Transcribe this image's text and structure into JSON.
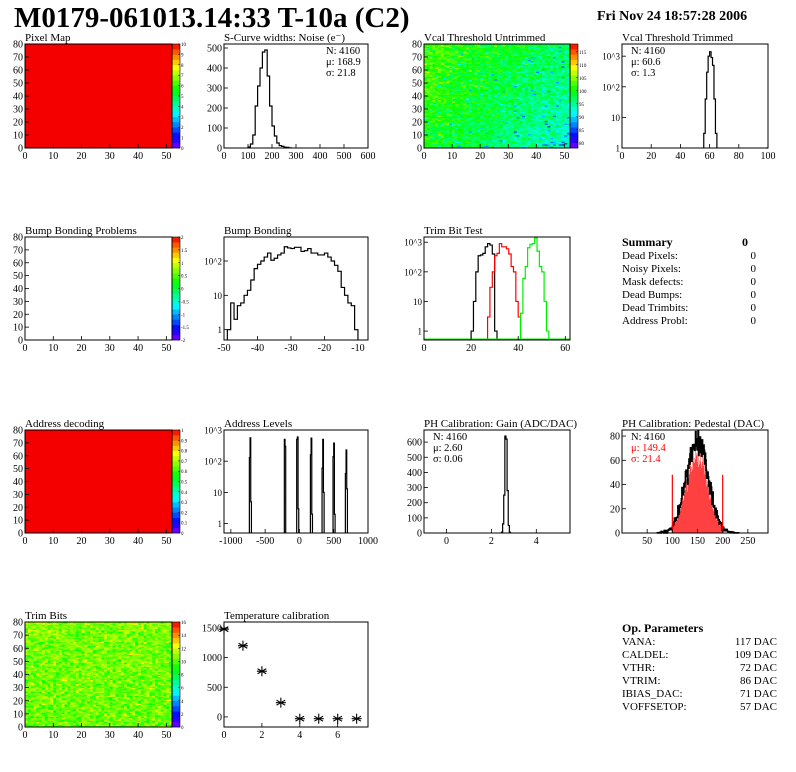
{
  "header": {
    "title": "M0179-061013.14:33 T-10a (C2)",
    "date": "Fri Nov 24 18:57:28 2006"
  },
  "summary": {
    "title": "Summary",
    "total": "0",
    "rows": [
      {
        "label": "Dead Pixels:",
        "value": "0"
      },
      {
        "label": "Noisy Pixels:",
        "value": "0"
      },
      {
        "label": "Mask defects:",
        "value": "0"
      },
      {
        "label": "Dead Bumps:",
        "value": "0"
      },
      {
        "label": "Dead Trimbits:",
        "value": "0"
      },
      {
        "label": "Address Probl:",
        "value": "0"
      }
    ]
  },
  "op_parameters": {
    "title": "Op. Parameters",
    "rows": [
      {
        "label": "VANA:",
        "value": "117 DAC"
      },
      {
        "label": "CALDEL:",
        "value": "109 DAC"
      },
      {
        "label": "VTHR:",
        "value": "72 DAC"
      },
      {
        "label": "VTRIM:",
        "value": "86 DAC"
      },
      {
        "label": "IBIAS_DAC:",
        "value": "71 DAC"
      },
      {
        "label": "VOFFSETOP:",
        "value": "57 DAC"
      }
    ]
  },
  "colors": {
    "hist_line": "#000000",
    "trim_red": "#ff0000",
    "trim_green": "#00ee00",
    "pedestal_fill": "#ff0000"
  },
  "chart_data": [
    {
      "id": "pixel_map",
      "type": "heatmap",
      "title": "Pixel Map",
      "xlim": [
        0,
        52
      ],
      "ylim": [
        0,
        80
      ],
      "zlim": [
        0,
        10
      ],
      "fill_value": 10,
      "x_ticks": [
        0,
        10,
        20,
        30,
        40,
        50
      ],
      "y_ticks": [
        0,
        10,
        20,
        30,
        40,
        50,
        60,
        70,
        80
      ],
      "z_ticks": [
        0,
        1,
        2,
        3,
        4,
        5,
        6,
        7,
        8,
        9,
        10
      ]
    },
    {
      "id": "scurve_noise",
      "type": "bar",
      "title": "S-Curve widths: Noise (e⁻)",
      "xlim": [
        0,
        600
      ],
      "ylim": [
        0,
        520
      ],
      "x_ticks": [
        0,
        100,
        200,
        300,
        400,
        500,
        600
      ],
      "y_ticks": [
        0,
        100,
        200,
        300,
        400,
        500
      ],
      "bin_width": 10,
      "bins": [
        [
          100,
          5
        ],
        [
          110,
          20
        ],
        [
          120,
          65
        ],
        [
          130,
          210
        ],
        [
          140,
          310
        ],
        [
          150,
          400
        ],
        [
          160,
          480
        ],
        [
          170,
          490
        ],
        [
          180,
          360
        ],
        [
          190,
          210
        ],
        [
          200,
          110
        ],
        [
          210,
          60
        ],
        [
          220,
          25
        ],
        [
          230,
          12
        ],
        [
          240,
          8
        ],
        [
          250,
          4
        ],
        [
          260,
          3
        ],
        [
          270,
          1
        ]
      ],
      "stats": [
        "N: 4160",
        "μ: 168.9",
        "σ: 21.8"
      ]
    },
    {
      "id": "vcal_untrimmed",
      "type": "heatmap",
      "title": "Vcal Threshold Untrimmed",
      "xlim": [
        0,
        52
      ],
      "ylim": [
        0,
        80
      ],
      "zlim": [
        78,
        118
      ],
      "x_ticks": [
        0,
        10,
        20,
        30,
        40,
        50
      ],
      "y_ticks": [
        0,
        10,
        20,
        30,
        40,
        50,
        60,
        70,
        80
      ],
      "z_ticks": [
        80,
        85,
        90,
        95,
        100,
        105,
        110,
        115
      ]
    },
    {
      "id": "vcal_trimmed",
      "type": "bar",
      "title": "Vcal Threshold Trimmed",
      "xlim": [
        0,
        100
      ],
      "ylim": [
        1,
        2500
      ],
      "log_y": true,
      "x_ticks": [
        0,
        20,
        40,
        60,
        80,
        100
      ],
      "y_ticks": [
        [
          "1",
          1
        ],
        [
          "10",
          10
        ],
        [
          "10^2",
          100
        ],
        [
          "10^3",
          1000
        ]
      ],
      "bin_width": 1,
      "bins": [
        [
          56,
          3
        ],
        [
          57,
          40
        ],
        [
          58,
          300
        ],
        [
          59,
          1000
        ],
        [
          60,
          1400
        ],
        [
          61,
          900
        ],
        [
          62,
          500
        ],
        [
          63,
          40
        ],
        [
          64,
          3
        ],
        [
          99,
          1
        ]
      ],
      "stats": [
        "N: 4160",
        "μ: 60.6",
        "σ:  1.3"
      ]
    },
    {
      "id": "bump_bonding_problems",
      "type": "heatmap",
      "title": "Bump Bonding Problems",
      "xlim": [
        0,
        52
      ],
      "ylim": [
        0,
        80
      ],
      "zlim": [
        -2,
        2
      ],
      "fill_value": null,
      "x_ticks": [
        0,
        10,
        20,
        30,
        40,
        50
      ],
      "y_ticks": [
        0,
        10,
        20,
        30,
        40,
        50,
        60,
        70,
        80
      ],
      "z_ticks": [
        -2,
        -1.5,
        -1,
        -0.5,
        0,
        0.5,
        1,
        1.5,
        2
      ]
    },
    {
      "id": "bump_bonding",
      "type": "bar",
      "title": "Bump Bonding",
      "xlim": [
        -50,
        -7
      ],
      "ylim": [
        0.5,
        500
      ],
      "log_y": true,
      "x_ticks": [
        -50,
        -40,
        -30,
        -20,
        -10
      ],
      "y_ticks": [
        [
          "1",
          1
        ],
        [
          "10",
          10
        ],
        [
          "10^2",
          100
        ]
      ],
      "bin_width": 1,
      "bins": [
        [
          -49,
          1
        ],
        [
          -48,
          6
        ],
        [
          -47,
          2
        ],
        [
          -46,
          5
        ],
        [
          -45,
          6
        ],
        [
          -44,
          10
        ],
        [
          -43,
          14
        ],
        [
          -42,
          28
        ],
        [
          -41,
          60
        ],
        [
          -40,
          80
        ],
        [
          -39,
          100
        ],
        [
          -38,
          130
        ],
        [
          -37,
          170
        ],
        [
          -36,
          105
        ],
        [
          -35,
          120
        ],
        [
          -34,
          150
        ],
        [
          -33,
          170
        ],
        [
          -32,
          260
        ],
        [
          -31,
          240
        ],
        [
          -30,
          230
        ],
        [
          -29,
          250
        ],
        [
          -28,
          250
        ],
        [
          -27,
          190
        ],
        [
          -26,
          200
        ],
        [
          -25,
          230
        ],
        [
          -24,
          170
        ],
        [
          -23,
          170
        ],
        [
          -22,
          150
        ],
        [
          -21,
          150
        ],
        [
          -20,
          170
        ],
        [
          -19,
          130
        ],
        [
          -18,
          100
        ],
        [
          -17,
          75
        ],
        [
          -16,
          50
        ],
        [
          -15,
          17
        ],
        [
          -14,
          10
        ],
        [
          -13,
          6
        ],
        [
          -12,
          5
        ],
        [
          -11,
          1
        ]
      ]
    },
    {
      "id": "trim_bit_test",
      "type": "bar",
      "title": "Trim Bit Test",
      "xlim": [
        0,
        62
      ],
      "ylim": [
        0.5,
        1500
      ],
      "log_y": true,
      "x_ticks": [
        0,
        20,
        40,
        60
      ],
      "y_ticks": [
        [
          "1",
          1
        ],
        [
          "10",
          10
        ],
        [
          "10^2",
          100
        ],
        [
          "10^3",
          1000
        ]
      ],
      "bin_width": 1,
      "series": [
        {
          "color": "#000000",
          "bins": [
            [
              20,
              1
            ],
            [
              21,
              10
            ],
            [
              22,
              100
            ],
            [
              23,
              350
            ],
            [
              24,
              370
            ],
            [
              25,
              420
            ],
            [
              26,
              700
            ],
            [
              27,
              900
            ],
            [
              28,
              800
            ],
            [
              29,
              400
            ],
            [
              30,
              1
            ]
          ]
        },
        {
          "color": "#ff0000",
          "bins": [
            [
              27,
              3
            ],
            [
              28,
              30
            ],
            [
              29,
              100
            ],
            [
              30,
              350
            ],
            [
              31,
              420
            ],
            [
              32,
              900
            ],
            [
              33,
              700
            ],
            [
              34,
              700
            ],
            [
              35,
              600
            ],
            [
              36,
              400
            ],
            [
              37,
              150
            ],
            [
              38,
              100
            ],
            [
              39,
              10
            ],
            [
              40,
              3
            ]
          ]
        },
        {
          "color": "#00ee00",
          "bins": [
            [
              41,
              4
            ],
            [
              42,
              60
            ],
            [
              43,
              150
            ],
            [
              44,
              650
            ],
            [
              45,
              850
            ],
            [
              46,
              900
            ],
            [
              47,
              1400
            ],
            [
              48,
              500
            ],
            [
              49,
              150
            ],
            [
              50,
              100
            ],
            [
              51,
              10
            ],
            [
              52,
              1
            ]
          ]
        }
      ]
    },
    {
      "id": "address_decoding",
      "type": "heatmap",
      "title": "Address decoding",
      "xlim": [
        0,
        52
      ],
      "ylim": [
        0,
        80
      ],
      "zlim": [
        0,
        1
      ],
      "fill_value": 1,
      "x_ticks": [
        0,
        10,
        20,
        30,
        40,
        50
      ],
      "y_ticks": [
        0,
        10,
        20,
        30,
        40,
        50,
        60,
        70,
        80
      ],
      "z_ticks": [
        0,
        0.1,
        0.2,
        0.3,
        0.4,
        0.5,
        0.6,
        0.7,
        0.8,
        0.9,
        1
      ]
    },
    {
      "id": "address_levels",
      "type": "bar",
      "title": "Address Levels",
      "xlim": [
        -1100,
        1000
      ],
      "ylim": [
        0.5,
        1000
      ],
      "log_y": true,
      "x_ticks": [
        -1000,
        -500,
        0,
        500,
        1000
      ],
      "y_ticks": [
        [
          "1",
          1
        ],
        [
          "10",
          10
        ],
        [
          "10^2",
          100
        ],
        [
          "10^3",
          1000
        ]
      ],
      "bin_width": 10,
      "bins": [
        [
          -730,
          130
        ],
        [
          -720,
          560
        ],
        [
          -710,
          5
        ],
        [
          -220,
          500
        ],
        [
          -210,
          300
        ],
        [
          -40,
          500
        ],
        [
          -30,
          600
        ],
        [
          -20,
          3
        ],
        [
          160,
          160
        ],
        [
          170,
          550
        ],
        [
          180,
          2
        ],
        [
          330,
          60
        ],
        [
          340,
          500
        ],
        [
          350,
          10
        ],
        [
          490,
          140
        ],
        [
          500,
          380
        ],
        [
          510,
          2
        ],
        [
          670,
          40
        ],
        [
          680,
          230
        ],
        [
          690,
          13
        ]
      ]
    },
    {
      "id": "ph_gain",
      "type": "bar",
      "title": "PH Calibration: Gain (ADC/DAC)",
      "xlim": [
        -1,
        5.5
      ],
      "ylim": [
        0,
        680
      ],
      "x_ticks": [
        0,
        2,
        4
      ],
      "y_ticks": [
        0,
        100,
        200,
        300,
        400,
        500,
        600
      ],
      "bin_width": 0.05,
      "bins": [
        [
          2.45,
          5
        ],
        [
          2.5,
          60
        ],
        [
          2.55,
          250
        ],
        [
          2.6,
          640
        ],
        [
          2.65,
          620
        ],
        [
          2.7,
          280
        ],
        [
          2.75,
          50
        ],
        [
          2.8,
          5
        ]
      ],
      "stats": [
        "N: 4160",
        "μ: 2.60",
        "σ: 0.06"
      ]
    },
    {
      "id": "ph_pedestal",
      "type": "bar",
      "title": "PH Calibration: Pedestal (DAC)",
      "xlim": [
        0,
        290
      ],
      "ylim": [
        0,
        85
      ],
      "x_ticks": [
        50,
        100,
        150,
        200,
        250
      ],
      "y_ticks": [
        0,
        20,
        40,
        60,
        80
      ],
      "n": 4160,
      "mean": 149.4,
      "sigma": 21.4,
      "fill_range": [
        100,
        200
      ],
      "cut_lines": [
        100,
        200
      ],
      "stats": [
        "N: 4160",
        "μ: 149.4",
        "σ: 21.4"
      ],
      "stats_colors": [
        "#000000",
        "#ff0000",
        "#ff0000"
      ]
    },
    {
      "id": "trim_bits",
      "type": "heatmap",
      "title": "Trim Bits",
      "xlim": [
        0,
        52
      ],
      "ylim": [
        0,
        80
      ],
      "zlim": [
        0,
        16
      ],
      "x_ticks": [
        0,
        10,
        20,
        30,
        40,
        50
      ],
      "y_ticks": [
        0,
        10,
        20,
        30,
        40,
        50,
        60,
        70,
        80
      ],
      "z_ticks": [
        0,
        2,
        4,
        6,
        8,
        10,
        12,
        14,
        16
      ]
    },
    {
      "id": "temperature_calibration",
      "type": "scatter",
      "title": "Temperature calibration",
      "xlim": [
        0,
        7.6
      ],
      "ylim": [
        -170,
        1600
      ],
      "x_ticks": [
        0,
        2,
        4,
        6
      ],
      "y_ticks": [
        0,
        500,
        1000,
        1500
      ],
      "marker": "asterisk",
      "x": [
        0,
        1,
        2,
        3,
        4,
        5,
        6,
        7
      ],
      "y": [
        1480,
        1200,
        770,
        240,
        -30,
        -30,
        -30,
        -30
      ]
    }
  ]
}
